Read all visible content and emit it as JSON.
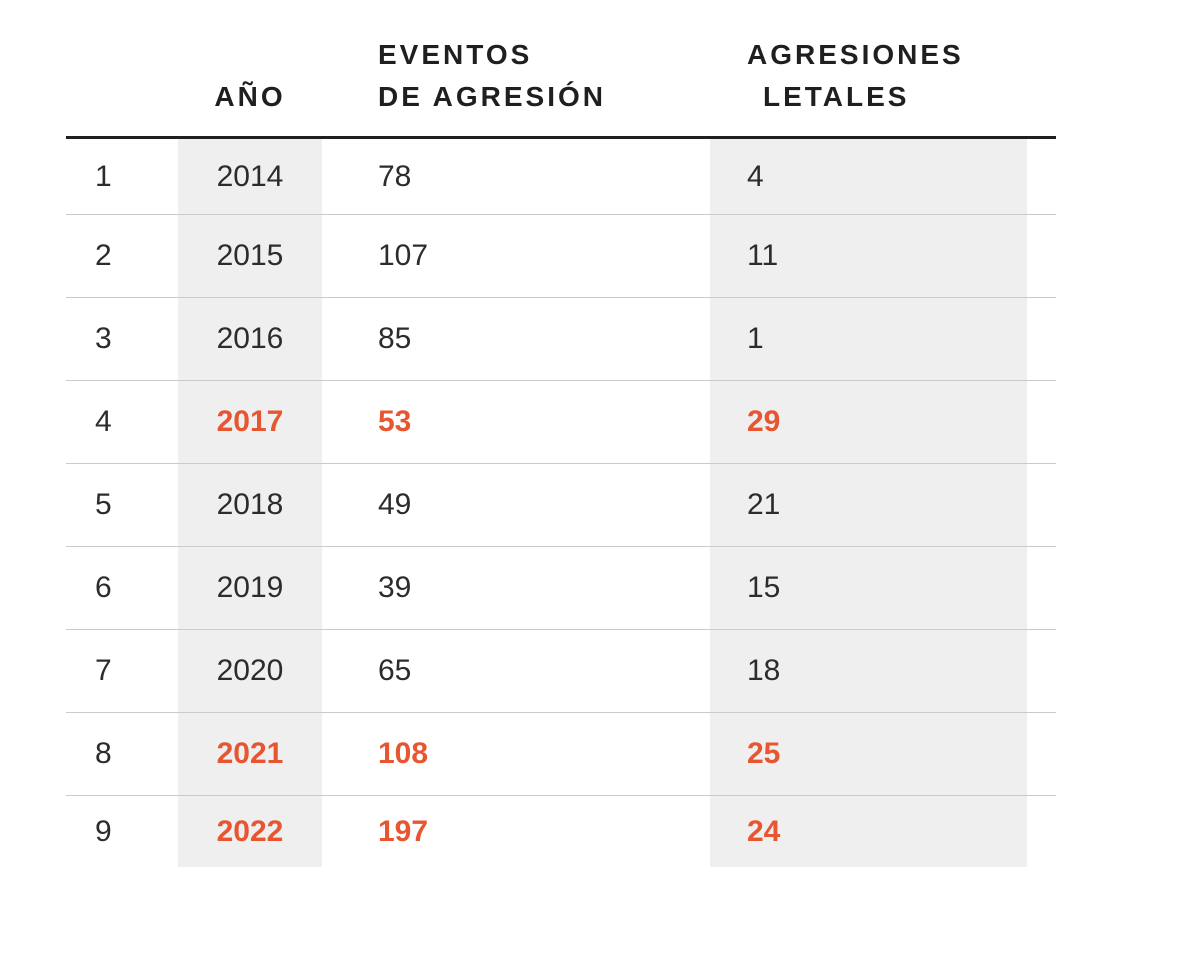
{
  "table": {
    "header": {
      "index_label": "",
      "year_label": "AÑO",
      "events_line1": "EVENTOS",
      "events_line2": "DE AGRESIÓN",
      "lethal_line1": "AGRESIONES",
      "lethal_line2": "LETALES"
    },
    "rows": [
      {
        "index": "1",
        "year": "2014",
        "events": "78",
        "lethal": "4",
        "highlight": false
      },
      {
        "index": "2",
        "year": "2015",
        "events": "107",
        "lethal": "11",
        "highlight": false
      },
      {
        "index": "3",
        "year": "2016",
        "events": "85",
        "lethal": "1",
        "highlight": false
      },
      {
        "index": "4",
        "year": "2017",
        "events": "53",
        "lethal": "29",
        "highlight": true
      },
      {
        "index": "5",
        "year": "2018",
        "events": "49",
        "lethal": "21",
        "highlight": false
      },
      {
        "index": "6",
        "year": "2019",
        "events": "39",
        "lethal": "15",
        "highlight": false
      },
      {
        "index": "7",
        "year": "2020",
        "events": "65",
        "lethal": "18",
        "highlight": false
      },
      {
        "index": "8",
        "year": "2021",
        "events": "108",
        "lethal": "25",
        "highlight": true
      },
      {
        "index": "9",
        "year": "2022",
        "events": "197",
        "lethal": "24",
        "highlight": true
      }
    ],
    "colors": {
      "highlight": "#e75630",
      "band": "#efefef",
      "divider": "#cbcbcb",
      "rule": "#1f1f1f",
      "text": "#2c2c2c"
    }
  },
  "chart_data": {
    "type": "table",
    "title": "",
    "columns": [
      "AÑO",
      "EVENTOS DE AGRESIÓN",
      "AGRESIONES LETALES"
    ],
    "categories": [
      "2014",
      "2015",
      "2016",
      "2017",
      "2018",
      "2019",
      "2020",
      "2021",
      "2022"
    ],
    "series": [
      {
        "name": "EVENTOS DE AGRESIÓN",
        "values": [
          78,
          107,
          85,
          53,
          49,
          39,
          65,
          108,
          197
        ]
      },
      {
        "name": "AGRESIONES LETALES",
        "values": [
          4,
          11,
          1,
          29,
          21,
          15,
          18,
          25,
          24
        ]
      }
    ],
    "highlighted_years": [
      "2017",
      "2021",
      "2022"
    ],
    "layout": "striped column bands on year and lethal columns, highlighted rows in orange bold"
  }
}
